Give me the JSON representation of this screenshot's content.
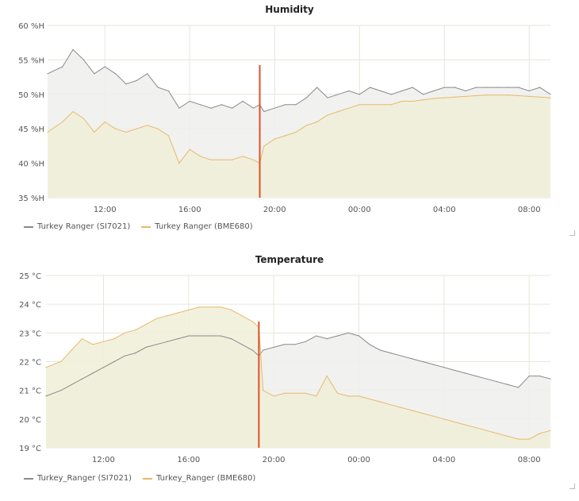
{
  "colors": {
    "series_a_line": "#8a8a8a",
    "series_a_fill": "#efefed",
    "series_b_line": "#e8b96a",
    "series_b_fill": "#f0eed8",
    "grid": "#e6e6dc",
    "annotation": "#d9532c"
  },
  "x_tick_labels": [
    "12:00",
    "16:00",
    "20:00",
    "00:00",
    "04:00",
    "08:00"
  ],
  "charts": [
    {
      "title": "Humidity",
      "legend": [
        "Turkey Ranger (SI7021)",
        "Turkey Ranger (BME680)"
      ]
    },
    {
      "title": "Temperature",
      "legend": [
        "Turkey_Ranger (SI7021)",
        "Turkey_Ranger (BME680)"
      ]
    }
  ],
  "chart_data": [
    {
      "type": "area",
      "title": "Humidity",
      "xlabel": "",
      "ylabel": "",
      "unit": "%H",
      "x_range_hours": [
        9.3,
        33.0
      ],
      "x_ticks": [
        12,
        16,
        20,
        24,
        28,
        32
      ],
      "x_tick_labels": [
        "12:00",
        "16:00",
        "20:00",
        "00:00",
        "04:00",
        "08:00"
      ],
      "ylim": [
        35,
        60
      ],
      "y_ticks": [
        35,
        40,
        45,
        50,
        55,
        60
      ],
      "y_tick_labels": [
        "35 %H",
        "40 %H",
        "45 %H",
        "50 %H",
        "55 %H",
        "60 %H"
      ],
      "grid": true,
      "annotation_time_hours": 19.3,
      "x": [
        9.3,
        10.0,
        10.5,
        11.0,
        11.5,
        12.0,
        12.5,
        13.0,
        13.5,
        14.0,
        14.5,
        15.0,
        15.5,
        16.0,
        16.5,
        17.0,
        17.5,
        18.0,
        18.5,
        19.0,
        19.3,
        19.5,
        20.0,
        20.5,
        21.0,
        21.5,
        22.0,
        22.5,
        23.0,
        23.5,
        24.0,
        24.5,
        25.0,
        25.5,
        26.0,
        26.5,
        27.0,
        27.5,
        28.0,
        28.5,
        29.0,
        29.5,
        30.0,
        30.5,
        31.0,
        31.5,
        32.0,
        32.5,
        33.0
      ],
      "series": [
        {
          "name": "Turkey Ranger (SI7021)",
          "values": [
            53,
            54,
            56.5,
            55,
            53,
            54,
            53,
            51.5,
            52,
            53,
            51,
            50.5,
            48,
            49,
            48.5,
            48,
            48.5,
            48,
            49,
            48,
            48.5,
            47.5,
            48,
            48.5,
            48.5,
            49.5,
            51,
            49.5,
            50,
            50.5,
            50,
            51,
            50.5,
            50,
            50.5,
            51,
            50,
            50.5,
            51,
            51,
            50.5,
            51,
            51,
            51,
            51,
            51,
            50.5,
            51,
            50
          ]
        },
        {
          "name": "Turkey Ranger (BME680)",
          "values": [
            44.5,
            46,
            47.5,
            46.5,
            44.5,
            46,
            45,
            44.5,
            45,
            45.5,
            45,
            44,
            40,
            42,
            41,
            40.5,
            40.5,
            40.5,
            41,
            40.5,
            40,
            42.5,
            43.5,
            44,
            44.5,
            45.5,
            46,
            47,
            47.5,
            48,
            48.5,
            48.5,
            48.5,
            48.5,
            49,
            49,
            49.2,
            49.4,
            49.5,
            49.6,
            49.7,
            49.8,
            49.9,
            49.9,
            49.9,
            49.8,
            49.7,
            49.6,
            49.5
          ]
        }
      ]
    },
    {
      "type": "area",
      "title": "Temperature",
      "xlabel": "",
      "ylabel": "",
      "unit": "°C",
      "x_range_hours": [
        9.3,
        33.0
      ],
      "x_ticks": [
        12,
        16,
        20,
        24,
        28,
        32
      ],
      "x_tick_labels": [
        "12:00",
        "16:00",
        "20:00",
        "00:00",
        "04:00",
        "08:00"
      ],
      "ylim": [
        19,
        25
      ],
      "y_ticks": [
        19,
        20,
        21,
        22,
        23,
        24,
        25
      ],
      "y_tick_labels": [
        "19 °C",
        "20 °C",
        "21 °C",
        "22 °C",
        "23 °C",
        "24 °C",
        "25 °C"
      ],
      "grid": true,
      "annotation_time_hours": 19.3,
      "x": [
        9.3,
        10.0,
        10.5,
        11.0,
        11.5,
        12.0,
        12.5,
        13.0,
        13.5,
        14.0,
        14.5,
        15.0,
        15.5,
        16.0,
        16.5,
        17.0,
        17.5,
        18.0,
        18.5,
        19.0,
        19.3,
        19.5,
        20.0,
        20.5,
        21.0,
        21.5,
        22.0,
        22.5,
        23.0,
        23.5,
        24.0,
        24.5,
        25.0,
        25.5,
        26.0,
        26.5,
        27.0,
        27.5,
        28.0,
        28.5,
        29.0,
        29.5,
        30.0,
        30.5,
        31.0,
        31.5,
        32.0,
        32.5,
        33.0
      ],
      "series": [
        {
          "name": "Turkey_Ranger (SI7021)",
          "values": [
            20.8,
            21.0,
            21.2,
            21.4,
            21.6,
            21.8,
            22.0,
            22.2,
            22.3,
            22.5,
            22.6,
            22.7,
            22.8,
            22.9,
            22.9,
            22.9,
            22.9,
            22.8,
            22.6,
            22.4,
            22.2,
            22.4,
            22.5,
            22.6,
            22.6,
            22.7,
            22.9,
            22.8,
            22.9,
            23.0,
            22.9,
            22.6,
            22.4,
            22.3,
            22.2,
            22.1,
            22.0,
            21.9,
            21.8,
            21.7,
            21.6,
            21.5,
            21.4,
            21.3,
            21.2,
            21.1,
            21.5,
            21.5,
            21.4
          ]
        },
        {
          "name": "Turkey_Ranger (BME680)",
          "values": [
            21.8,
            22.0,
            22.4,
            22.8,
            22.6,
            22.7,
            22.8,
            23.0,
            23.1,
            23.3,
            23.5,
            23.6,
            23.7,
            23.8,
            23.9,
            23.9,
            23.9,
            23.8,
            23.6,
            23.4,
            23.2,
            21.0,
            20.8,
            20.9,
            20.9,
            20.9,
            20.8,
            21.5,
            20.9,
            20.8,
            20.8,
            20.7,
            20.6,
            20.5,
            20.4,
            20.3,
            20.2,
            20.1,
            20.0,
            19.9,
            19.8,
            19.7,
            19.6,
            19.5,
            19.4,
            19.3,
            19.3,
            19.5,
            19.6
          ]
        }
      ]
    }
  ]
}
